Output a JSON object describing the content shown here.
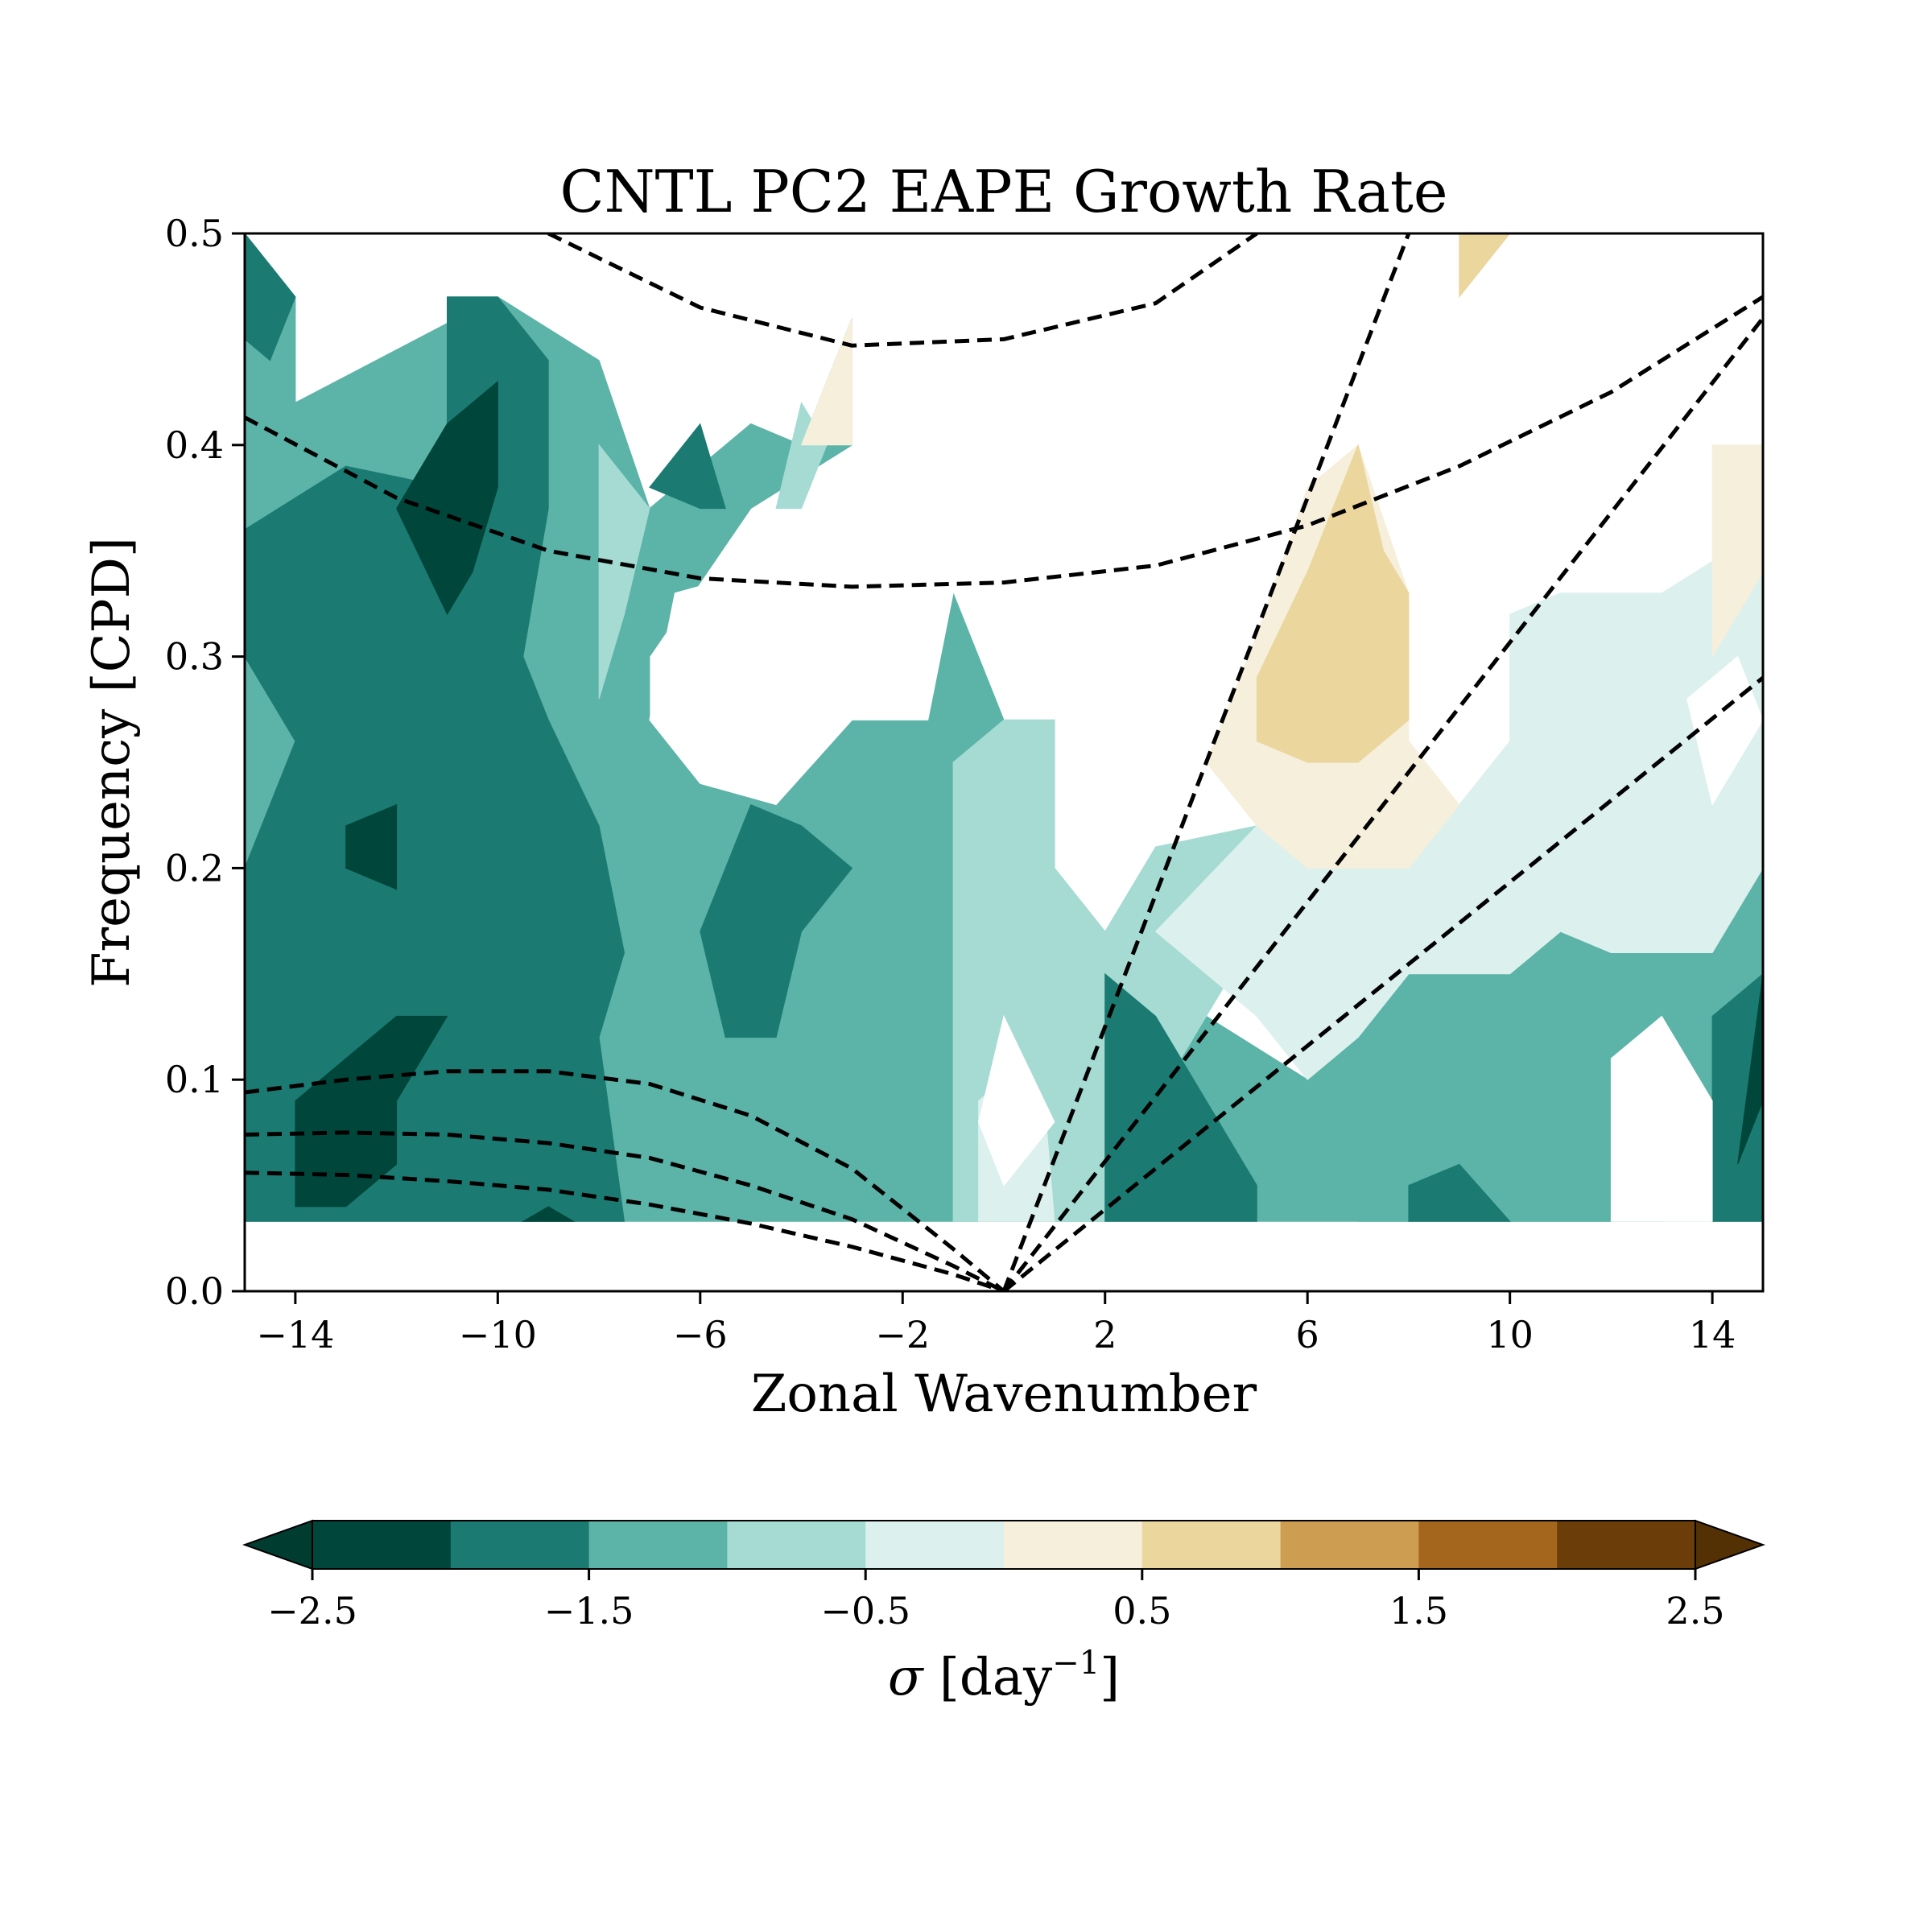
{
  "chart_data": {
    "type": "contour",
    "title": "CNTL PC2 EAPE Growth Rate",
    "xlabel": "Zonal Wavenumber",
    "ylabel": "Frequency [CPD]",
    "xlim": [
      -15,
      15
    ],
    "ylim": [
      0,
      0.5
    ],
    "x_ticks": [
      -14,
      -10,
      -6,
      -2,
      2,
      6,
      10,
      14
    ],
    "x_tick_labels": [
      "−14",
      "−10",
      "−6",
      "−2",
      "2",
      "6",
      "10",
      "14"
    ],
    "y_ticks": [
      0.0,
      0.1,
      0.2,
      0.3,
      0.4,
      0.5
    ],
    "y_tick_labels": [
      "0.0",
      "0.1",
      "0.2",
      "0.3",
      "0.4",
      "0.5"
    ],
    "colorbar": {
      "label_symbol": "σ",
      "label_unit": " [day",
      "label_exp": "−1",
      "label_close": "]",
      "levels": [
        -2.5,
        -2.0,
        -1.5,
        -1.0,
        -0.5,
        0.0,
        0.5,
        1.0,
        1.5,
        2.0,
        2.5
      ],
      "colors": [
        "#01463a",
        "#1b7b72",
        "#5cb3a8",
        "#a5dbd3",
        "#dcf0ed",
        "#f5efdc",
        "#ebd69e",
        "#cd9e52",
        "#a3661c",
        "#6b3e09"
      ],
      "under_color": "#003c30",
      "over_color": "#543005",
      "ticks": [
        -2.5,
        -1.5,
        -0.5,
        0.5,
        1.5,
        2.5
      ],
      "tick_labels": [
        "−2.5",
        "−1.5",
        "−0.5",
        "0.5",
        "1.5",
        "2.5"
      ]
    },
    "data_region": {
      "ymin": 0.033
    },
    "regions": [
      {
        "color_index": 2,
        "points": [
          [
            -15,
            0.033
          ],
          [
            -15,
            0.5
          ],
          [
            -14,
            0.47
          ],
          [
            -14,
            0.42
          ],
          [
            -10,
            0.47
          ],
          [
            -8,
            0.44
          ],
          [
            -7,
            0.37
          ],
          [
            -5,
            0.41
          ],
          [
            -4,
            0.4
          ],
          [
            -3,
            0.46
          ],
          [
            -3,
            0.4
          ],
          [
            -5,
            0.37
          ],
          [
            -7,
            0.3
          ],
          [
            -7,
            0.27
          ],
          [
            -1,
            0.33
          ],
          [
            0,
            0.27
          ],
          [
            1,
            0.27
          ],
          [
            1,
            0.2
          ],
          [
            2,
            0.17
          ],
          [
            3,
            0.17
          ],
          [
            4,
            0.13
          ],
          [
            6,
            0.1
          ],
          [
            7,
            0.12
          ],
          [
            8,
            0.15
          ],
          [
            10,
            0.15
          ],
          [
            11,
            0.17
          ],
          [
            12,
            0.16
          ],
          [
            14,
            0.16
          ],
          [
            15,
            0.2
          ],
          [
            15,
            0.033
          ]
        ]
      },
      {
        "color_index": 3,
        "points": [
          [
            -1,
            0.033
          ],
          [
            -1,
            0.25
          ],
          [
            0,
            0.27
          ],
          [
            1,
            0.27
          ],
          [
            1,
            0.2
          ],
          [
            2,
            0.17
          ],
          [
            3,
            0.21
          ],
          [
            5,
            0.22
          ],
          [
            6,
            0.19
          ],
          [
            5,
            0.17
          ],
          [
            4,
            0.13
          ],
          [
            3,
            0.09
          ],
          [
            2,
            0.033
          ]
        ]
      },
      {
        "color_index": 4,
        "points": [
          [
            3,
            0.17
          ],
          [
            5,
            0.22
          ],
          [
            6,
            0.24
          ],
          [
            9,
            0.23
          ],
          [
            10,
            0.26
          ],
          [
            10,
            0.32
          ],
          [
            11,
            0.33
          ],
          [
            13,
            0.33
          ],
          [
            15,
            0.36
          ],
          [
            15,
            0.2
          ],
          [
            14,
            0.16
          ],
          [
            12,
            0.16
          ],
          [
            11,
            0.17
          ],
          [
            10,
            0.15
          ],
          [
            8,
            0.15
          ],
          [
            7,
            0.12
          ],
          [
            6,
            0.1
          ],
          [
            5,
            0.13
          ]
        ]
      },
      {
        "color_index": 4,
        "points": [
          [
            -0.5,
            0.033
          ],
          [
            -0.5,
            0.09
          ],
          [
            0,
            0.1
          ],
          [
            0.8,
            0.09
          ],
          [
            1,
            0.033
          ]
        ]
      },
      {
        "color_index": 3,
        "points": [
          [
            -8,
            0.28
          ],
          [
            -8,
            0.4
          ],
          [
            -7,
            0.37
          ],
          [
            -7.5,
            0.32
          ]
        ]
      },
      {
        "color_index": 3,
        "points": [
          [
            -4.5,
            0.37
          ],
          [
            -4,
            0.42
          ],
          [
            -3.5,
            0.4
          ],
          [
            -4,
            0.37
          ]
        ]
      },
      {
        "color_index": 5,
        "points": [
          [
            -4,
            0.4
          ],
          [
            -3,
            0.46
          ],
          [
            -3,
            0.4
          ]
        ]
      },
      {
        "color_index": 5,
        "points": [
          [
            4,
            0.25
          ],
          [
            5,
            0.31
          ],
          [
            6,
            0.38
          ],
          [
            7,
            0.4
          ],
          [
            8,
            0.33
          ],
          [
            8,
            0.26
          ],
          [
            9,
            0.23
          ],
          [
            8,
            0.2
          ],
          [
            6,
            0.2
          ],
          [
            5,
            0.22
          ]
        ]
      },
      {
        "color_index": 6,
        "points": [
          [
            5,
            0.29
          ],
          [
            6,
            0.34
          ],
          [
            7,
            0.4
          ],
          [
            7.5,
            0.35
          ],
          [
            8,
            0.33
          ],
          [
            8,
            0.27
          ],
          [
            7,
            0.25
          ],
          [
            6,
            0.25
          ],
          [
            5,
            0.26
          ]
        ]
      },
      {
        "color_index": 6,
        "points": [
          [
            9,
            0.47
          ],
          [
            9,
            0.5
          ],
          [
            10,
            0.5
          ]
        ]
      },
      {
        "color_index": 5,
        "points": [
          [
            14,
            0.3
          ],
          [
            14,
            0.4
          ],
          [
            15,
            0.4
          ],
          [
            15,
            0.34
          ],
          [
            14.5,
            0.32
          ]
        ]
      },
      {
        "color_index": 1,
        "points": [
          [
            -15,
            0.033
          ],
          [
            -15,
            0.2
          ],
          [
            -14,
            0.26
          ],
          [
            -15,
            0.3
          ],
          [
            -15,
            0.36
          ],
          [
            -13,
            0.39
          ],
          [
            -11,
            0.38
          ],
          [
            -11,
            0.47
          ],
          [
            -10,
            0.47
          ],
          [
            -9,
            0.44
          ],
          [
            -9,
            0.37
          ],
          [
            -9.5,
            0.3
          ],
          [
            -9,
            0.27
          ],
          [
            -8,
            0.22
          ],
          [
            -7.5,
            0.16
          ],
          [
            -8,
            0.12
          ],
          [
            -7.5,
            0.033
          ]
        ]
      },
      {
        "color_index": 1,
        "points": [
          [
            -15,
            0.45
          ],
          [
            -15,
            0.5
          ],
          [
            -14,
            0.47
          ],
          [
            -14.5,
            0.44
          ]
        ]
      },
      {
        "color_index": 1,
        "points": [
          [
            -5.5,
            0.12
          ],
          [
            -6,
            0.17
          ],
          [
            -5,
            0.23
          ],
          [
            -4,
            0.22
          ],
          [
            -3,
            0.2
          ],
          [
            -4,
            0.17
          ],
          [
            -4.5,
            0.12
          ]
        ]
      },
      {
        "color_index": 1,
        "points": [
          [
            -7,
            0.38
          ],
          [
            -6,
            0.41
          ],
          [
            -5.5,
            0.37
          ],
          [
            -6,
            0.37
          ]
        ]
      },
      {
        "color_index": 1,
        "points": [
          [
            2,
            0.033
          ],
          [
            2,
            0.15
          ],
          [
            3,
            0.13
          ],
          [
            4,
            0.09
          ],
          [
            5,
            0.05
          ],
          [
            5,
            0.033
          ]
        ]
      },
      {
        "color_index": 1,
        "points": [
          [
            14,
            0.033
          ],
          [
            14,
            0.13
          ],
          [
            15,
            0.15
          ],
          [
            15,
            0.033
          ]
        ]
      },
      {
        "color_index": 2,
        "points": [
          [
            7,
            0.033
          ],
          [
            7,
            0.05
          ],
          [
            8,
            0.09
          ],
          [
            9,
            0.09
          ],
          [
            10,
            0.1
          ],
          [
            11,
            0.11
          ],
          [
            12,
            0.1
          ],
          [
            13,
            0.033
          ]
        ]
      },
      {
        "color_index": 0,
        "points": [
          [
            -13,
            0.22
          ],
          [
            -13,
            0.2
          ],
          [
            -12,
            0.19
          ],
          [
            -12,
            0.23
          ]
        ]
      },
      {
        "color_index": 0,
        "points": [
          [
            -14,
            0.04
          ],
          [
            -14,
            0.09
          ],
          [
            -13,
            0.11
          ],
          [
            -12,
            0.13
          ],
          [
            -11,
            0.13
          ],
          [
            -12,
            0.09
          ],
          [
            -12,
            0.06
          ],
          [
            -13,
            0.04
          ]
        ]
      },
      {
        "color_index": 0,
        "points": [
          [
            -11,
            0.32
          ],
          [
            -12,
            0.37
          ],
          [
            -11,
            0.41
          ],
          [
            -10,
            0.43
          ],
          [
            -10,
            0.38
          ],
          [
            -10.5,
            0.34
          ]
        ]
      },
      {
        "color_index": 0,
        "points": [
          [
            14.5,
            0.06
          ],
          [
            15,
            0.15
          ],
          [
            15,
            0.09
          ]
        ]
      },
      {
        "color_index": 1,
        "points": [
          [
            8,
            0.033
          ],
          [
            8,
            0.05
          ],
          [
            9,
            0.06
          ],
          [
            10,
            0.033
          ]
        ]
      },
      {
        "color_index": 0,
        "points": [
          [
            -9.5,
            0.033
          ],
          [
            -9,
            0.04
          ],
          [
            -8.5,
            0.033
          ]
        ]
      },
      {
        "color_index": "white",
        "points": [
          [
            -7,
            0.27
          ],
          [
            -6.5,
            0.33
          ],
          [
            -5,
            0.34
          ],
          [
            -1,
            0.33
          ],
          [
            -1.5,
            0.27
          ],
          [
            -3,
            0.27
          ],
          [
            -4.5,
            0.23
          ],
          [
            -6,
            0.24
          ]
        ]
      },
      {
        "color_index": "white",
        "points": [
          [
            -0.5,
            0.08
          ],
          [
            0,
            0.13
          ],
          [
            1,
            0.08
          ],
          [
            0,
            0.05
          ]
        ]
      },
      {
        "color_index": "white",
        "points": [
          [
            12,
            0.033
          ],
          [
            12,
            0.11
          ],
          [
            13,
            0.13
          ],
          [
            14,
            0.09
          ],
          [
            14,
            0.033
          ]
        ]
      },
      {
        "color_index": "white",
        "points": [
          [
            13.5,
            0.28
          ],
          [
            14.5,
            0.3
          ],
          [
            15,
            0.27
          ],
          [
            14,
            0.23
          ]
        ]
      }
    ],
    "dispersion_curves": [
      {
        "type": "line",
        "points": [
          [
            0,
            0
          ],
          [
            8,
            0.5
          ]
        ]
      },
      {
        "type": "line",
        "points": [
          [
            0,
            0
          ],
          [
            15,
            0.46
          ]
        ]
      },
      {
        "type": "line",
        "points": [
          [
            0,
            0
          ],
          [
            15,
            0.29
          ]
        ]
      },
      {
        "type": "curve",
        "points": [
          [
            -9,
            0.5
          ],
          [
            -6,
            0.465
          ],
          [
            -3,
            0.447
          ],
          [
            0,
            0.45
          ],
          [
            3,
            0.467
          ],
          [
            5,
            0.5
          ]
        ]
      },
      {
        "type": "curve",
        "points": [
          [
            -15,
            0.413
          ],
          [
            -12,
            0.375
          ],
          [
            -9,
            0.35
          ],
          [
            -6,
            0.337
          ],
          [
            -3,
            0.333
          ],
          [
            0,
            0.335
          ],
          [
            3,
            0.343
          ],
          [
            6,
            0.362
          ],
          [
            9,
            0.39
          ],
          [
            12,
            0.425
          ],
          [
            15,
            0.47
          ]
        ]
      },
      {
        "type": "curve",
        "points": [
          [
            -15,
            0.094
          ],
          [
            -13,
            0.1
          ],
          [
            -11,
            0.104
          ],
          [
            -9,
            0.104
          ],
          [
            -7,
            0.098
          ],
          [
            -5,
            0.083
          ],
          [
            -3,
            0.058
          ],
          [
            -1,
            0.02
          ],
          [
            0,
            0
          ]
        ]
      },
      {
        "type": "curve",
        "points": [
          [
            -15,
            0.074
          ],
          [
            -13,
            0.075
          ],
          [
            -11,
            0.074
          ],
          [
            -9,
            0.07
          ],
          [
            -7,
            0.063
          ],
          [
            -5,
            0.05
          ],
          [
            -3,
            0.034
          ],
          [
            -1,
            0.012
          ],
          [
            0,
            0
          ]
        ]
      },
      {
        "type": "curve",
        "points": [
          [
            -15,
            0.056
          ],
          [
            -13,
            0.055
          ],
          [
            -11,
            0.052
          ],
          [
            -9,
            0.048
          ],
          [
            -7,
            0.041
          ],
          [
            -5,
            0.032
          ],
          [
            -3,
            0.021
          ],
          [
            -1,
            0.008
          ],
          [
            0,
            0
          ]
        ]
      }
    ]
  }
}
